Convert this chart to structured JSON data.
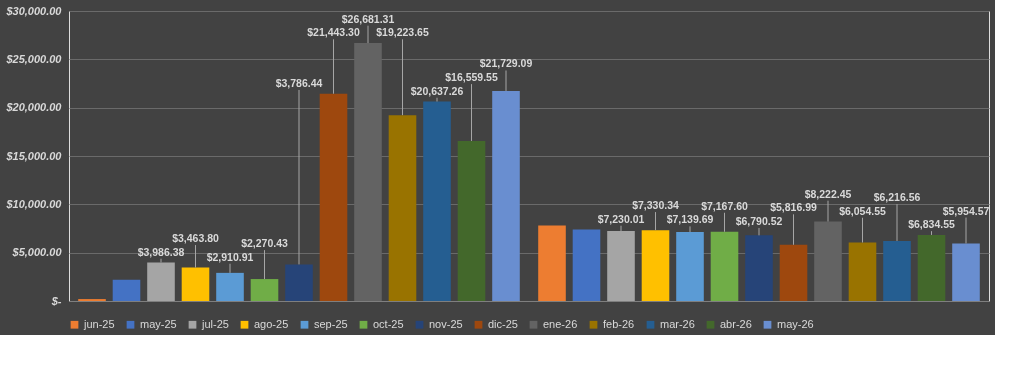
{
  "chart_data": {
    "type": "bar",
    "categories": [
      null,
      null
    ],
    "series": [
      {
        "name": "jun-25",
        "color": "#ed7d31",
        "values": [
          200,
          7800
        ],
        "value_labels": [
          null,
          null
        ]
      },
      {
        "name": "may-25",
        "color": "#4472c4",
        "values": [
          2200,
          7400
        ],
        "value_labels": [
          null,
          null
        ]
      },
      {
        "name": "jul-25",
        "color": "#a5a5a5",
        "values": [
          3986.38,
          7230.01
        ],
        "value_labels": [
          "$3,986.38",
          "$7,230.01"
        ]
      },
      {
        "name": "ago-25",
        "color": "#ffc000",
        "values": [
          3463.8,
          7330.34
        ],
        "value_labels": [
          "$3,463.80",
          "$7,330.34"
        ]
      },
      {
        "name": "sep-25",
        "color": "#5b9bd5",
        "values": [
          2910.91,
          7139.69
        ],
        "value_labels": [
          "$2,910.91",
          "$7,139.69"
        ]
      },
      {
        "name": "oct-25",
        "color": "#70ad47",
        "values": [
          2270.43,
          7167.6
        ],
        "value_labels": [
          "$2,270.43",
          "$7,167.60"
        ]
      },
      {
        "name": "nov-25",
        "color": "#264478",
        "values": [
          3786.44,
          6790.52
        ],
        "value_labels": [
          "$3,786.44",
          "$6,790.52"
        ]
      },
      {
        "name": "dic-25",
        "color": "#9e480e",
        "values": [
          21443.3,
          5816.99
        ],
        "value_labels": [
          "$21,443.30",
          "$5,816.99"
        ]
      },
      {
        "name": "ene-26",
        "color": "#636363",
        "values": [
          26681.31,
          8222.45
        ],
        "value_labels": [
          "$26,681.31",
          "$8,222.45"
        ]
      },
      {
        "name": "feb-26",
        "color": "#997300",
        "values": [
          19223.65,
          6054.55
        ],
        "value_labels": [
          "$19,223.65",
          "$6,054.55"
        ]
      },
      {
        "name": "mar-26",
        "color": "#255e91",
        "values": [
          20637.26,
          6216.56
        ],
        "value_labels": [
          "$20,637.26",
          "$6,216.56"
        ]
      },
      {
        "name": "abr-26",
        "color": "#43682b",
        "values": [
          16559.55,
          6834.55
        ],
        "value_labels": [
          "$16,559.55",
          "$6,834.55"
        ]
      },
      {
        "name": "may-26",
        "color": "#698ed0",
        "values": [
          21729.09,
          5954.57
        ],
        "value_labels": [
          "$21,729.09",
          "$5,954.57"
        ]
      }
    ],
    "ylim": [
      0,
      30000
    ],
    "yticks": [
      {
        "value": 0,
        "label": "$-"
      },
      {
        "value": 5000,
        "label": "$5,000.00"
      },
      {
        "value": 10000,
        "label": "$10,000.00"
      },
      {
        "value": 15000,
        "label": "$15,000.00"
      },
      {
        "value": 20000,
        "label": "$20,000.00"
      },
      {
        "value": 25000,
        "label": "$25,000.00"
      },
      {
        "value": 30000,
        "label": "$30,000.00"
      }
    ],
    "grid": "y",
    "legend": "bottom",
    "tick_labels": "y"
  }
}
